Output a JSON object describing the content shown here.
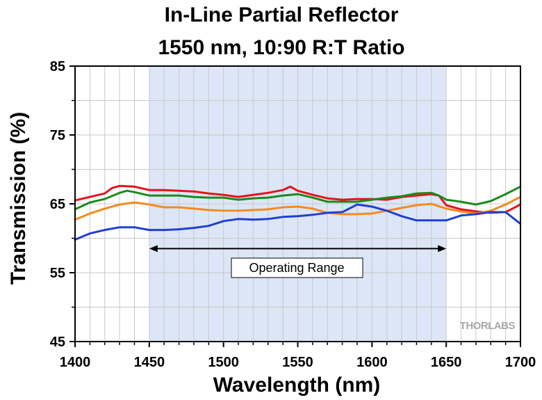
{
  "chart_data": {
    "type": "line",
    "title": "In-Line Partial Reflector",
    "subtitle": "1550 nm, 10:90 R:T Ratio",
    "xlabel": "Wavelength (nm)",
    "ylabel": "Transmission (%)",
    "xlim": [
      1400,
      1700
    ],
    "ylim": [
      45,
      85
    ],
    "xticks": [
      1400,
      1450,
      1500,
      1550,
      1600,
      1650,
      1700
    ],
    "yticks": [
      45,
      55,
      65,
      75,
      85
    ],
    "xtick_labels": [
      "1400",
      "1450",
      "1500",
      "1550",
      "1600",
      "1650",
      "1700"
    ],
    "ytick_labels": [
      "45",
      "55",
      "65",
      "75",
      "85"
    ],
    "grid": true,
    "operating_range": {
      "label": "Operating Range",
      "start": 1450,
      "end": 1650,
      "arrow_y": 58.5,
      "shade_color": "#dce6f6"
    },
    "watermark": "THORLABS",
    "series": [
      {
        "name": "red",
        "color": "#e8121b",
        "x": [
          1400,
          1410,
          1420,
          1425,
          1430,
          1440,
          1450,
          1460,
          1470,
          1480,
          1490,
          1500,
          1510,
          1520,
          1530,
          1540,
          1545,
          1550,
          1560,
          1570,
          1580,
          1590,
          1600,
          1610,
          1620,
          1630,
          1640,
          1645,
          1650,
          1660,
          1670,
          1680,
          1690,
          1700
        ],
        "y": [
          65.5,
          66.0,
          66.5,
          67.3,
          67.6,
          67.5,
          67.0,
          67.0,
          66.9,
          66.8,
          66.5,
          66.3,
          66.0,
          66.3,
          66.6,
          67.0,
          67.5,
          66.9,
          66.3,
          65.8,
          65.6,
          65.7,
          65.7,
          65.6,
          66.0,
          66.2,
          66.4,
          66.2,
          64.8,
          64.2,
          63.9,
          63.7,
          63.8,
          64.9
        ]
      },
      {
        "name": "green",
        "color": "#1b8a1b",
        "x": [
          1400,
          1410,
          1420,
          1430,
          1435,
          1440,
          1450,
          1460,
          1470,
          1480,
          1490,
          1500,
          1510,
          1520,
          1530,
          1540,
          1550,
          1560,
          1570,
          1580,
          1590,
          1600,
          1610,
          1620,
          1630,
          1640,
          1645,
          1650,
          1660,
          1670,
          1680,
          1690,
          1700
        ],
        "y": [
          64.2,
          65.2,
          65.7,
          66.6,
          66.9,
          66.7,
          66.2,
          66.2,
          66.2,
          66.0,
          65.9,
          65.9,
          65.6,
          65.8,
          65.9,
          66.2,
          66.4,
          65.9,
          65.3,
          65.3,
          65.3,
          65.6,
          65.9,
          66.1,
          66.5,
          66.6,
          66.2,
          65.6,
          65.3,
          64.9,
          65.4,
          66.4,
          67.5
        ]
      },
      {
        "name": "orange",
        "color": "#f58a1e",
        "x": [
          1400,
          1410,
          1420,
          1430,
          1440,
          1450,
          1460,
          1470,
          1480,
          1490,
          1500,
          1510,
          1520,
          1530,
          1540,
          1550,
          1560,
          1570,
          1580,
          1590,
          1600,
          1610,
          1620,
          1630,
          1640,
          1650,
          1660,
          1670,
          1680,
          1690,
          1700
        ],
        "y": [
          62.7,
          63.6,
          64.3,
          64.9,
          65.2,
          64.9,
          64.5,
          64.5,
          64.3,
          64.1,
          64.0,
          64.0,
          64.1,
          64.2,
          64.5,
          64.6,
          64.3,
          63.7,
          63.5,
          63.5,
          63.6,
          64.0,
          64.4,
          64.8,
          65.0,
          64.3,
          63.9,
          63.6,
          64.0,
          64.9,
          66.0
        ]
      },
      {
        "name": "blue",
        "color": "#1f3fd4",
        "x": [
          1400,
          1410,
          1420,
          1430,
          1440,
          1450,
          1460,
          1470,
          1480,
          1490,
          1500,
          1510,
          1520,
          1530,
          1540,
          1550,
          1560,
          1570,
          1580,
          1590,
          1600,
          1610,
          1620,
          1630,
          1640,
          1650,
          1660,
          1670,
          1680,
          1690,
          1700
        ],
        "y": [
          59.8,
          60.7,
          61.2,
          61.6,
          61.6,
          61.2,
          61.2,
          61.3,
          61.5,
          61.8,
          62.5,
          62.8,
          62.7,
          62.8,
          63.1,
          63.2,
          63.4,
          63.7,
          63.8,
          64.9,
          64.6,
          64.0,
          63.2,
          62.6,
          62.6,
          62.6,
          63.3,
          63.5,
          63.8,
          63.8,
          62.1
        ]
      }
    ]
  }
}
